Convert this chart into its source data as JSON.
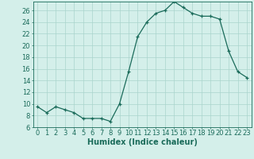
{
  "x": [
    0,
    1,
    2,
    3,
    4,
    5,
    6,
    7,
    8,
    9,
    10,
    11,
    12,
    13,
    14,
    15,
    16,
    17,
    18,
    19,
    20,
    21,
    22,
    23
  ],
  "y": [
    9.5,
    8.5,
    9.5,
    9.0,
    8.5,
    7.5,
    7.5,
    7.5,
    7.0,
    10.0,
    15.5,
    21.5,
    24.0,
    25.5,
    26.0,
    27.5,
    26.5,
    25.5,
    25.0,
    25.0,
    24.5,
    19.0,
    15.5,
    14.5
  ],
  "line_color": "#1a6b5a",
  "marker": "+",
  "marker_size": 3.5,
  "bg_color": "#d4efea",
  "grid_color": "#aad4cc",
  "xlabel": "Humidex (Indice chaleur)",
  "xlim": [
    -0.5,
    23.5
  ],
  "ylim": [
    6,
    27.5
  ],
  "yticks": [
    6,
    8,
    10,
    12,
    14,
    16,
    18,
    20,
    22,
    24,
    26
  ],
  "xtick_labels": [
    "0",
    "1",
    "2",
    "3",
    "4",
    "5",
    "6",
    "7",
    "8",
    "9",
    "10",
    "11",
    "12",
    "13",
    "14",
    "15",
    "16",
    "17",
    "18",
    "19",
    "20",
    "21",
    "22",
    "23"
  ],
  "tick_color": "#1a6b5a",
  "xlabel_fontsize": 7,
  "tick_fontsize": 6,
  "linewidth": 0.9
}
